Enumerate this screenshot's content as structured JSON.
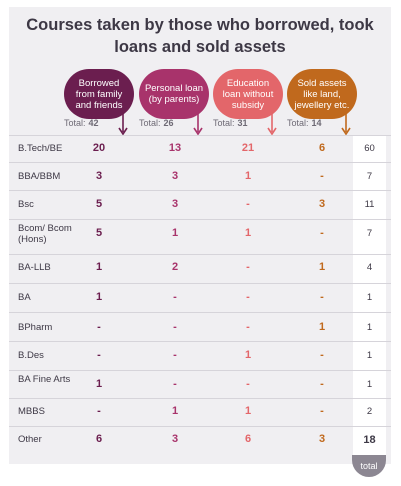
{
  "chart_data": {
    "type": "table",
    "title": "Courses taken by those who borrowed, took loans and sold assets",
    "columns": [
      {
        "name": "Borrowed from family and friends",
        "total_label": "Total:",
        "total": "42",
        "color": "#6b1e4f"
      },
      {
        "name": "Personal loan (by parents)",
        "total_label": "Total:",
        "total": "26",
        "color": "#a8336b"
      },
      {
        "name": "Education loan without subsidy",
        "total_label": "Total:",
        "total": "31",
        "color": "#e3666a"
      },
      {
        "name": "Sold assets like land, jewellery etc.",
        "total_label": "Total:",
        "total": "14",
        "color": "#c0691d"
      }
    ],
    "rows": [
      {
        "label": "B.Tech/BE",
        "values": [
          "20",
          "13",
          "21",
          "6"
        ],
        "total": "60"
      },
      {
        "label": "BBA/BBM",
        "values": [
          "3",
          "3",
          "1",
          "-"
        ],
        "total": "7"
      },
      {
        "label": "Bsc",
        "values": [
          "5",
          "3",
          "-",
          "3"
        ],
        "total": "11"
      },
      {
        "label": "Bcom/ Bcom (Hons)",
        "values": [
          "5",
          "1",
          "1",
          "-"
        ],
        "total": "7"
      },
      {
        "label": "BA-LLB",
        "values": [
          "1",
          "2",
          "-",
          "1"
        ],
        "total": "4"
      },
      {
        "label": "BA",
        "values": [
          "1",
          "-",
          "-",
          "-"
        ],
        "total": "1"
      },
      {
        "label": "BPharm",
        "values": [
          "-",
          "-",
          "-",
          "1"
        ],
        "total": "1"
      },
      {
        "label": "B.Des",
        "values": [
          "-",
          "-",
          "1",
          "-"
        ],
        "total": "1"
      },
      {
        "label": "BA Fine Arts",
        "values": [
          "1",
          "-",
          "-",
          "-"
        ],
        "total": "1"
      },
      {
        "label": "MBBS",
        "values": [
          "-",
          "1",
          "1",
          "-"
        ],
        "total": "2"
      },
      {
        "label": "Other",
        "values": [
          "6",
          "3",
          "6",
          "3"
        ],
        "total": "18"
      }
    ],
    "total_column_label": "total"
  }
}
